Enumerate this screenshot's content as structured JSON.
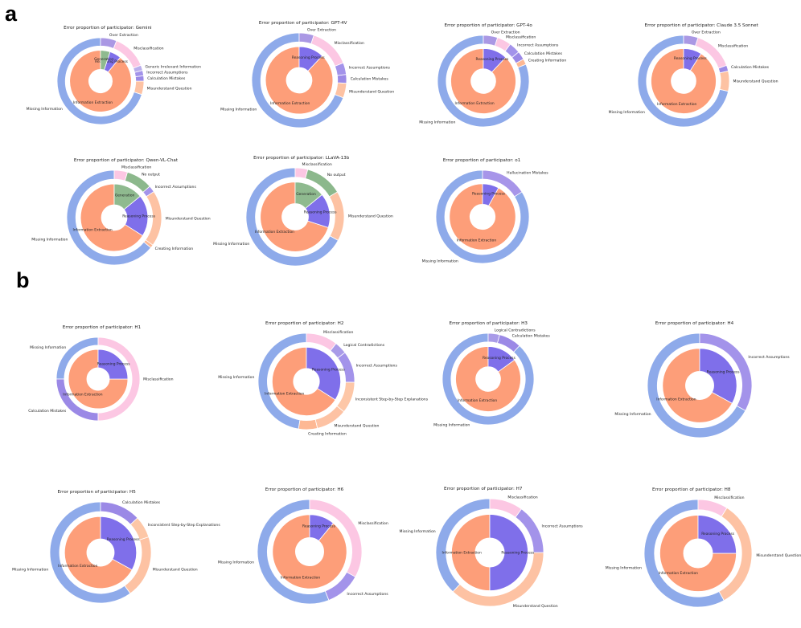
{
  "panels": [
    {
      "letter": "a"
    },
    {
      "letter": "b"
    }
  ],
  "colors": {
    "Missing Information": "#8eaaea",
    "Information Extraction": "#fd9e79",
    "Reasoning Process": "#7f6fea",
    "Generation": "#8fba8f",
    "Misunderstand Question": "#fdc2a3",
    "Calculation Mistakes": "#9b89e6",
    "Incorrect Assumptions": "#a393ea",
    "Logical Contradictions": "#a99be8",
    "Generic Irrelevant Information": "#b9adec",
    "Misclassification": "#fcc7e3",
    "Over Extraction": "#aa98e4",
    "Creating Information": "#fdb894",
    "Inconsistent Step-by-Step Explanations": "#fdc7a7",
    "No output": "#8cb88c",
    "Hallucination Mistakes": "#a795e9"
  },
  "chart_data": [
    {
      "type": "nested-pie",
      "panel": "a",
      "title": "Error proportion of participator: Gemini",
      "outer": [
        {
          "label": "Missing Information",
          "value": 70
        },
        {
          "label": "Misunderstand Question",
          "value": 5
        },
        {
          "label": "Calculation Mistakes",
          "value": 2
        },
        {
          "label": "Incorrect Assumptions",
          "value": 2
        },
        {
          "label": "Generic Irrelevant Information",
          "value": 2
        },
        {
          "label": "Misclassification",
          "value": 13
        },
        {
          "label": "Over Extraction",
          "value": 6
        }
      ],
      "inner": [
        {
          "label": "Information Extraction",
          "value": 89
        },
        {
          "label": "Reasoning Process",
          "value": 6
        },
        {
          "label": "Generation",
          "value": 5
        }
      ]
    },
    {
      "type": "nested-pie",
      "panel": "a",
      "title": "Error proportion of participator: GPT-4V",
      "outer": [
        {
          "label": "Missing Information",
          "value": 69
        },
        {
          "label": "Misunderstand Question",
          "value": 5
        },
        {
          "label": "Calculation Mistakes",
          "value": 3
        },
        {
          "label": "Incorrect Assumptions",
          "value": 4
        },
        {
          "label": "Misclassification",
          "value": 14
        },
        {
          "label": "Over Extraction",
          "value": 5
        }
      ],
      "inner": [
        {
          "label": "Information Extraction",
          "value": 88
        },
        {
          "label": "Reasoning Process",
          "value": 12
        }
      ]
    },
    {
      "type": "nested-pie",
      "panel": "a",
      "title": "Error proportion of participator: GPT-4o",
      "outer": [
        {
          "label": "Missing Information",
          "value": 81
        },
        {
          "label": "Creating Information",
          "value": 2
        },
        {
          "label": "Calculation Mistakes",
          "value": 3
        },
        {
          "label": "Incorrect Assumptions",
          "value": 4
        },
        {
          "label": "Misclassification",
          "value": 5
        },
        {
          "label": "Over Extraction",
          "value": 5
        }
      ],
      "inner": [
        {
          "label": "Information Extraction",
          "value": 88
        },
        {
          "label": "Reasoning Process",
          "value": 12
        }
      ]
    },
    {
      "type": "nested-pie",
      "panel": "a",
      "title": "Error proportion of participator: Claude 3.5 Sonnet",
      "outer": [
        {
          "label": "Missing Information",
          "value": 70
        },
        {
          "label": "Misunderstand Question",
          "value": 7
        },
        {
          "label": "Calculation Mistakes",
          "value": 2
        },
        {
          "label": "Misclassification",
          "value": 14
        },
        {
          "label": "Over Extraction",
          "value": 5
        }
      ],
      "inner": [
        {
          "label": "Information Extraction",
          "value": 91
        },
        {
          "label": "Reasoning Process",
          "value": 9
        }
      ]
    },
    {
      "type": "nested-pie",
      "panel": "a",
      "title": "Error proportion of participator: Qwen-VL-Chat",
      "outer": [
        {
          "label": "Missing Information",
          "value": 57
        },
        {
          "label": "Creating Information",
          "value": 1
        },
        {
          "label": "Misunderstand Question",
          "value": 17
        },
        {
          "label": "Incorrect Assumptions",
          "value": 2
        },
        {
          "label": "No output",
          "value": 8
        },
        {
          "label": "Misclassification",
          "value": 4
        }
      ],
      "inner": [
        {
          "label": "Information Extraction",
          "value": 66
        },
        {
          "label": "Reasoning Process",
          "value": 20
        },
        {
          "label": "Generation",
          "value": 14
        }
      ]
    },
    {
      "type": "nested-pie",
      "panel": "a",
      "title": "Error proportion of participator: LLaVA-13b",
      "outer": [
        {
          "label": "Missing Information",
          "value": 65
        },
        {
          "label": "Misunderstand Question",
          "value": 16
        },
        {
          "label": "No output",
          "value": 12
        },
        {
          "label": "Misclassification",
          "value": 4
        }
      ],
      "inner": [
        {
          "label": "Information Extraction",
          "value": 70
        },
        {
          "label": "Reasoning Process",
          "value": 16
        },
        {
          "label": "Generation",
          "value": 14
        }
      ]
    },
    {
      "type": "nested-pie",
      "panel": "a",
      "title": "Error proportion of participator: o1",
      "outer": [
        {
          "label": "Missing Information",
          "value": 84
        },
        {
          "label": "Hallucination Mistakes",
          "value": 16
        }
      ],
      "inner": [
        {
          "label": "Information Extraction",
          "value": 92
        },
        {
          "label": "Reasoning Process",
          "value": 8
        }
      ]
    },
    {
      "type": "nested-pie",
      "panel": "b",
      "title": "Error proportion of participator: H1",
      "outer": [
        {
          "label": "Missing Information",
          "value": 25
        },
        {
          "label": "Calculation Mistakes",
          "value": 25
        },
        {
          "label": "Misclassification",
          "value": 50
        }
      ],
      "inner": [
        {
          "label": "Information Extraction",
          "value": 75
        },
        {
          "label": "Reasoning Process",
          "value": 25
        }
      ]
    },
    {
      "type": "nested-pie",
      "panel": "b",
      "title": "Error proportion of participator: H2",
      "outer": [
        {
          "label": "Missing Information",
          "value": 45
        },
        {
          "label": "Creating Information",
          "value": 6
        },
        {
          "label": "Misunderstand Question",
          "value": 10
        },
        {
          "label": "Inconsistent Step-by-Step Explanations",
          "value": 10
        },
        {
          "label": "Incorrect Assumptions",
          "value": 10
        },
        {
          "label": "Logical Contradictions",
          "value": 4
        },
        {
          "label": "Misclassification",
          "value": 10
        }
      ],
      "inner": [
        {
          "label": "Information Extraction",
          "value": 66
        },
        {
          "label": "Reasoning Process",
          "value": 34
        }
      ]
    },
    {
      "type": "nested-pie",
      "panel": "b",
      "title": "Error proportion of participator: H3",
      "outer": [
        {
          "label": "Missing Information",
          "value": 88
        },
        {
          "label": "Calculation Mistakes",
          "value": 8
        },
        {
          "label": "Logical Contradictions",
          "value": 4
        }
      ],
      "inner": [
        {
          "label": "Information Extraction",
          "value": 85
        },
        {
          "label": "Reasoning Process",
          "value": 15
        }
      ]
    },
    {
      "type": "nested-pie",
      "panel": "b",
      "title": "Error proportion of participator: H4",
      "outer": [
        {
          "label": "Missing Information",
          "value": 67
        },
        {
          "label": "Incorrect Assumptions",
          "value": 33
        }
      ],
      "inner": [
        {
          "label": "Information Extraction",
          "value": 67
        },
        {
          "label": "Reasoning Process",
          "value": 33
        }
      ]
    },
    {
      "type": "nested-pie",
      "panel": "b",
      "title": "Error proportion of participator: H5",
      "outer": [
        {
          "label": "Missing Information",
          "value": 60
        },
        {
          "label": "Misunderstand Question",
          "value": 20
        },
        {
          "label": "Inconsistent Step-by-Step Explanations",
          "value": 7
        },
        {
          "label": "Calculation Mistakes",
          "value": 13
        }
      ],
      "inner": [
        {
          "label": "Information Extraction",
          "value": 67
        },
        {
          "label": "Reasoning Process",
          "value": 33
        }
      ]
    },
    {
      "type": "nested-pie",
      "panel": "b",
      "title": "Error proportion of participator: H6",
      "outer": [
        {
          "label": "Missing Information",
          "value": 56
        },
        {
          "label": "Incorrect Assumptions",
          "value": 11
        },
        {
          "label": "Misclassification",
          "value": 33
        }
      ],
      "inner": [
        {
          "label": "Information Extraction",
          "value": 89
        },
        {
          "label": "Reasoning Process",
          "value": 11
        }
      ]
    },
    {
      "type": "nested-pie",
      "panel": "b",
      "title": "Error proportion of participator: H7",
      "outer": [
        {
          "label": "Missing Information",
          "value": 38
        },
        {
          "label": "Misunderstand Question",
          "value": 37
        },
        {
          "label": "Incorrect Assumptions",
          "value": 15
        },
        {
          "label": "Misclassification",
          "value": 10
        }
      ],
      "inner": [
        {
          "label": "Information Extraction",
          "value": 50
        },
        {
          "label": "Reasoning Process",
          "value": 50
        }
      ]
    },
    {
      "type": "nested-pie",
      "panel": "b",
      "title": "Error proportion of participator: H8",
      "outer": [
        {
          "label": "Missing Information",
          "value": 58
        },
        {
          "label": "Misunderstand Question",
          "value": 33
        },
        {
          "label": "Misclassification",
          "value": 9
        }
      ],
      "inner": [
        {
          "label": "Information Extraction",
          "value": 75
        },
        {
          "label": "Reasoning Process",
          "value": 25
        }
      ]
    }
  ]
}
